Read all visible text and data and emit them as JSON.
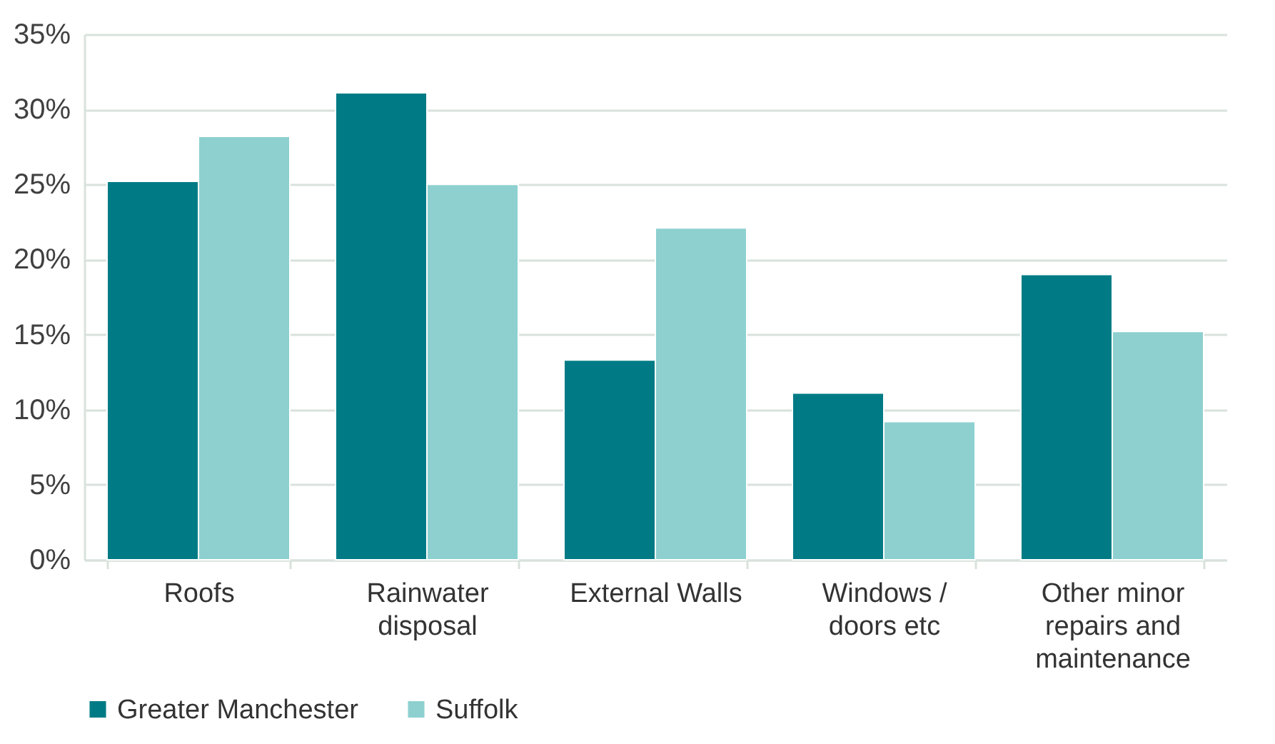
{
  "chart_data": {
    "type": "bar",
    "categories": [
      "Roofs",
      "Rainwater disposal",
      "External Walls",
      "Windows / doors etc",
      "Other minor repairs and maintenance"
    ],
    "series": [
      {
        "name": "Greater Manchester",
        "color": "#007b85",
        "values": [
          25.2,
          31.1,
          13.3,
          11.1,
          19.0
        ]
      },
      {
        "name": "Suffolk",
        "color": "#8ed0d0",
        "values": [
          28.2,
          25.0,
          22.1,
          9.2,
          15.2
        ]
      }
    ],
    "ylim": [
      0,
      35
    ],
    "yticks": [
      {
        "value": 0,
        "label": "0%"
      },
      {
        "value": 5,
        "label": "5%"
      },
      {
        "value": 10,
        "label": "10%"
      },
      {
        "value": 15,
        "label": "15%"
      },
      {
        "value": 20,
        "label": "20%"
      },
      {
        "value": 25,
        "label": "25%"
      },
      {
        "value": 30,
        "label": "30%"
      },
      {
        "value": 35,
        "label": "35%"
      }
    ],
    "grid": "y",
    "legend": "bottom"
  }
}
